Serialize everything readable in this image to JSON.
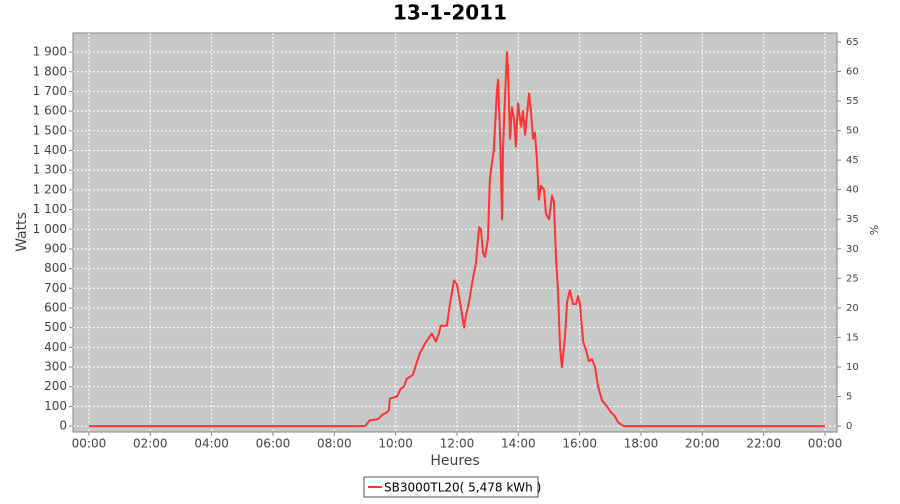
{
  "chart_data": {
    "type": "line",
    "title": "13-1-2011",
    "x_label": "Heures",
    "y_label": "Watts",
    "y2_label": "%",
    "x": [
      0,
      9.0,
      9.16,
      9.42,
      9.59,
      9.72,
      9.78,
      9.81,
      10.04,
      10.17,
      10.27,
      10.36,
      10.56,
      10.66,
      10.79,
      10.96,
      11.09,
      11.18,
      11.31,
      11.41,
      11.47,
      11.67,
      11.77,
      11.9,
      12.0,
      12.13,
      12.23,
      12.29,
      12.39,
      12.52,
      12.62,
      12.72,
      12.78,
      12.85,
      12.91,
      13.01,
      13.07,
      13.14,
      13.2,
      13.3,
      13.34,
      13.4,
      13.47,
      13.5,
      13.56,
      13.63,
      13.66,
      13.73,
      13.79,
      13.86,
      13.92,
      13.99,
      14.09,
      14.15,
      14.22,
      14.28,
      14.35,
      14.41,
      14.48,
      14.54,
      14.61,
      14.67,
      14.74,
      14.84,
      14.9,
      15.0,
      15.1,
      15.16,
      15.23,
      15.29,
      15.36,
      15.42,
      15.52,
      15.59,
      15.68,
      15.78,
      15.88,
      15.95,
      16.01,
      16.11,
      16.2,
      16.3,
      16.4,
      16.5,
      16.6,
      16.73,
      16.89,
      17.02,
      17.15,
      17.25,
      17.38,
      17.44,
      24.0
    ],
    "series": [
      {
        "name": "SB3000TL20( 5,478 kWh )",
        "color": "#ff3333",
        "values": [
          0,
          0,
          30,
          35,
          60,
          70,
          80,
          140,
          150,
          190,
          200,
          240,
          260,
          310,
          370,
          420,
          450,
          470,
          430,
          470,
          510,
          510,
          620,
          740,
          720,
          600,
          500,
          560,
          630,
          750,
          830,
          1010,
          1000,
          880,
          860,
          950,
          1250,
          1340,
          1400,
          1700,
          1760,
          1500,
          1050,
          1400,
          1650,
          1900,
          1820,
          1460,
          1620,
          1560,
          1420,
          1640,
          1520,
          1600,
          1480,
          1580,
          1690,
          1600,
          1460,
          1490,
          1350,
          1150,
          1220,
          1200,
          1080,
          1050,
          1170,
          1140,
          850,
          700,
          400,
          300,
          450,
          630,
          690,
          620,
          620,
          660,
          620,
          430,
          390,
          330,
          340,
          300,
          200,
          130,
          100,
          70,
          50,
          20,
          5,
          0,
          0
        ]
      }
    ],
    "xlim": [
      -0.52,
      24.39
    ],
    "xticks": [
      {
        "value": 0,
        "label": "00:00"
      },
      {
        "value": 2,
        "label": "02:00"
      },
      {
        "value": 4,
        "label": "04:00"
      },
      {
        "value": 6,
        "label": "06:00"
      },
      {
        "value": 8,
        "label": "08:00"
      },
      {
        "value": 10,
        "label": "10:00"
      },
      {
        "value": 12,
        "label": "12:00"
      },
      {
        "value": 14,
        "label": "14:00"
      },
      {
        "value": 16,
        "label": "16:00"
      },
      {
        "value": 18,
        "label": "18:00"
      },
      {
        "value": 20,
        "label": "20:00"
      },
      {
        "value": 22,
        "label": "22:00"
      },
      {
        "value": 24,
        "label": "00:00"
      }
    ],
    "ylim": [
      -30,
      1997
    ],
    "yticks": [
      0,
      100,
      200,
      300,
      400,
      500,
      600,
      700,
      800,
      900,
      {
        "value": 1000,
        "label": "1 000"
      },
      {
        "value": 1100,
        "label": "1 100"
      },
      {
        "value": 1200,
        "label": "1 200"
      },
      {
        "value": 1300,
        "label": "1 300"
      },
      {
        "value": 1400,
        "label": "1 400"
      },
      {
        "value": 1500,
        "label": "1 500"
      },
      {
        "value": 1600,
        "label": "1 600"
      },
      {
        "value": 1700,
        "label": "1 700"
      },
      {
        "value": 1800,
        "label": "1 800"
      },
      {
        "value": 1900,
        "label": "1 900"
      }
    ],
    "y2lim": [
      -1,
      66.5
    ],
    "y2ticks": [
      0,
      5,
      10,
      15,
      20,
      25,
      30,
      35,
      40,
      45,
      50,
      55,
      60,
      65
    ],
    "grid": true
  }
}
